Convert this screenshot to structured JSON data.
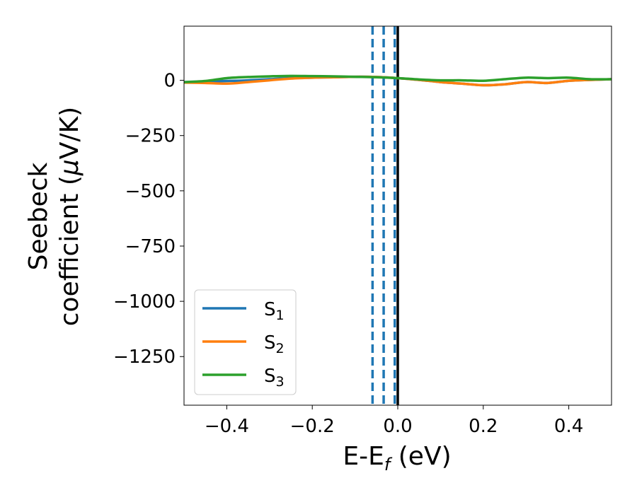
{
  "chart_data": {
    "type": "line",
    "xlabel": "E-E",
    "xlabel_sub": "f",
    "xlabel_unit": " (eV)",
    "ylabel_line1": "Seebeck",
    "ylabel_line2": "coefficient  (",
    "ylabel_mu": "μ",
    "ylabel_unit_end": "V/K)",
    "xlim": [
      -0.5,
      0.5
    ],
    "ylim": [
      -1470,
      245
    ],
    "x_ticks": [
      -0.4,
      -0.2,
      0.0,
      0.2,
      0.4
    ],
    "x_tick_labels": [
      "−0.4",
      "−0.2",
      "0.0",
      "0.2",
      "0.4"
    ],
    "y_ticks": [
      0,
      -250,
      -500,
      -750,
      -1000,
      -1250
    ],
    "y_tick_labels": [
      "0",
      "−250",
      "−500",
      "−750",
      "−1000",
      "−1250"
    ],
    "grid": false,
    "legend_position": "lower-left",
    "vlines": [
      {
        "x": 0.0,
        "style": "solid",
        "color": "#000000"
      },
      {
        "x": -0.059,
        "style": "dashed",
        "color": "#1f77b4"
      },
      {
        "x": -0.033,
        "style": "dashed",
        "color": "#1f77b4"
      },
      {
        "x": -0.007,
        "style": "dashed",
        "color": "#1f77b4"
      }
    ],
    "x": [
      -0.5,
      -0.45,
      -0.4,
      -0.35,
      -0.3,
      -0.25,
      -0.2,
      -0.15,
      -0.1,
      -0.05,
      0.0,
      0.05,
      0.1,
      0.15,
      0.2,
      0.25,
      0.3,
      0.35,
      0.4,
      0.45,
      0.5
    ],
    "series": [
      {
        "name": "S",
        "sub": "1",
        "color": "#1f77b4",
        "values": [
          -8,
          -5,
          -3,
          0,
          5,
          10,
          12,
          14,
          16,
          15,
          10,
          2,
          -8,
          -15,
          -22,
          -18,
          -8,
          -12,
          -2,
          2,
          5
        ]
      },
      {
        "name": "S",
        "sub": "2",
        "color": "#ff7f0e",
        "values": [
          -10,
          -12,
          -15,
          -8,
          0,
          8,
          12,
          14,
          16,
          15,
          10,
          2,
          -8,
          -15,
          -22,
          -18,
          -8,
          -12,
          -2,
          2,
          5
        ]
      },
      {
        "name": "S",
        "sub": "3",
        "color": "#2ca02c",
        "values": [
          -8,
          -3,
          10,
          15,
          18,
          20,
          19,
          18,
          16,
          14,
          10,
          4,
          0,
          0,
          -2,
          5,
          12,
          10,
          12,
          5,
          5
        ]
      }
    ]
  }
}
